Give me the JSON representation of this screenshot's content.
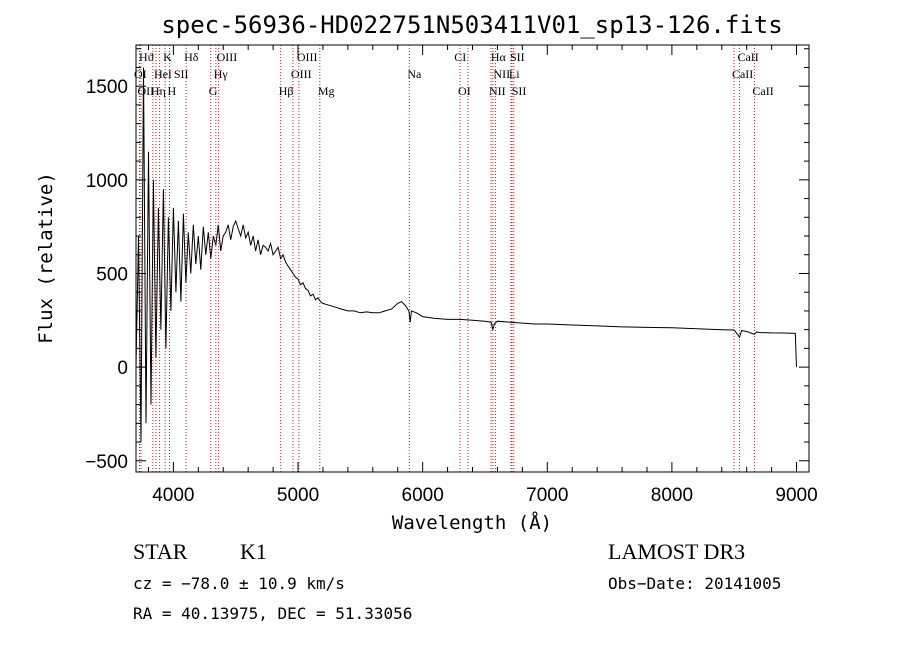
{
  "chart_data": {
    "type": "line",
    "title": "spec-56936-HD022751N503411V01_sp13-126.fits",
    "xlabel": "Wavelength (Å)",
    "ylabel": "Flux (relative)",
    "xlim": [
      3700,
      9100
    ],
    "ylim": [
      -560,
      1720
    ],
    "xticks": [
      4000,
      5000,
      6000,
      7000,
      8000,
      9000
    ],
    "yticks": [
      -500,
      0,
      500,
      1000,
      1500
    ],
    "series": [
      {
        "name": "flux",
        "x": [
          3700,
          3720,
          3740,
          3760,
          3780,
          3800,
          3820,
          3840,
          3860,
          3880,
          3900,
          3920,
          3940,
          3960,
          3980,
          4000,
          4020,
          4040,
          4060,
          4080,
          4100,
          4120,
          4140,
          4160,
          4180,
          4200,
          4220,
          4240,
          4260,
          4280,
          4300,
          4320,
          4340,
          4360,
          4380,
          4400,
          4420,
          4440,
          4460,
          4480,
          4500,
          4520,
          4540,
          4560,
          4580,
          4600,
          4620,
          4640,
          4660,
          4680,
          4700,
          4720,
          4740,
          4760,
          4780,
          4800,
          4820,
          4840,
          4860,
          4880,
          4900,
          4920,
          4940,
          4960,
          4980,
          5000,
          5020,
          5040,
          5060,
          5080,
          5100,
          5120,
          5140,
          5160,
          5180,
          5200,
          5250,
          5300,
          5350,
          5400,
          5450,
          5500,
          5550,
          5600,
          5650,
          5700,
          5750,
          5800,
          5830,
          5860,
          5890,
          5900,
          5910,
          5950,
          6000,
          6100,
          6200,
          6300,
          6400,
          6500,
          6550,
          6563,
          6575,
          6600,
          6700,
          6800,
          6900,
          7000,
          7200,
          7400,
          7600,
          7800,
          8000,
          8200,
          8400,
          8500,
          8542,
          8560,
          8600,
          8662,
          8680,
          8700,
          8800,
          8900,
          8990,
          9000
        ],
        "values": [
          0,
          700,
          -400,
          1600,
          -300,
          1150,
          -200,
          1000,
          50,
          850,
          200,
          950,
          100,
          800,
          300,
          850,
          400,
          780,
          350,
          820,
          450,
          720,
          500,
          760,
          550,
          700,
          520,
          750,
          600,
          720,
          580,
          700,
          650,
          760,
          620,
          700,
          720,
          760,
          680,
          750,
          780,
          740,
          700,
          760,
          690,
          720,
          650,
          700,
          620,
          680,
          600,
          650,
          640,
          620,
          660,
          600,
          620,
          640,
          580,
          600,
          560,
          540,
          520,
          500,
          480,
          470,
          440,
          450,
          420,
          410,
          380,
          390,
          360,
          370,
          350,
          340,
          330,
          320,
          310,
          300,
          300,
          290,
          295,
          290,
          290,
          300,
          310,
          340,
          350,
          330,
          300,
          240,
          300,
          290,
          270,
          260,
          255,
          255,
          250,
          245,
          240,
          200,
          230,
          245,
          240,
          235,
          230,
          230,
          225,
          220,
          215,
          212,
          210,
          205,
          200,
          198,
          160,
          195,
          190,
          175,
          188,
          185,
          183,
          182,
          180,
          0
        ]
      }
    ],
    "line_labels": [
      {
        "text": "Hϑ",
        "x": 3740,
        "row": 0
      },
      {
        "text": "K",
        "x": 3934,
        "row": 0
      },
      {
        "text": "Hδ",
        "x": 4102,
        "row": 0
      },
      {
        "text": "OIII",
        "x": 4363,
        "row": 0
      },
      {
        "text": "OIII",
        "x": 5007,
        "row": 0
      },
      {
        "text": "CI",
        "x": 6270,
        "row": 0
      },
      {
        "text": "Hα",
        "x": 6563,
        "row": 0
      },
      {
        "text": "SII",
        "x": 6717,
        "row": 0
      },
      {
        "text": "CaII",
        "x": 8542,
        "row": 0
      },
      {
        "text": "OI",
        "x": 3700,
        "row": 1
      },
      {
        "text": "HeI",
        "x": 3860,
        "row": 1
      },
      {
        "text": "SII",
        "x": 4020,
        "row": 1
      },
      {
        "text": "Hγ",
        "x": 4340,
        "row": 1
      },
      {
        "text": "OIII",
        "x": 4959,
        "row": 1
      },
      {
        "text": "Na",
        "x": 5893,
        "row": 1
      },
      {
        "text": "NII",
        "x": 6584,
        "row": 1
      },
      {
        "text": "Li",
        "x": 6708,
        "row": 1
      },
      {
        "text": "CaII",
        "x": 8498,
        "row": 1
      },
      {
        "text": "OII",
        "x": 3728,
        "row": 2
      },
      {
        "text": "Hη",
        "x": 3835,
        "row": 2
      },
      {
        "text": "H",
        "x": 3969,
        "row": 2
      },
      {
        "text": "G",
        "x": 4300,
        "row": 2
      },
      {
        "text": "Hβ",
        "x": 4861,
        "row": 2
      },
      {
        "text": "Mg",
        "x": 5175,
        "row": 2
      },
      {
        "text": "OI",
        "x": 6300,
        "row": 2
      },
      {
        "text": "NII",
        "x": 6548,
        "row": 2
      },
      {
        "text": "SII",
        "x": 6731,
        "row": 2
      },
      {
        "text": "CaII",
        "x": 8662,
        "row": 2
      }
    ],
    "line_marks": [
      3728,
      3740,
      3835,
      3860,
      3889,
      3934,
      3969,
      4102,
      4300,
      4340,
      4363,
      4861,
      4959,
      5007,
      5175,
      5893,
      6300,
      6363,
      6548,
      6563,
      6584,
      6708,
      6717,
      6731,
      8498,
      8542,
      8662
    ]
  },
  "footer": {
    "object_type": "STAR",
    "subclass": "K1",
    "survey": "LAMOST DR3",
    "redshift": "cz = −78.0 ± 10.9 km/s",
    "obs_date": "Obs−Date: 20141005",
    "coords": "RA =  40.13975, DEC =  51.33056"
  }
}
